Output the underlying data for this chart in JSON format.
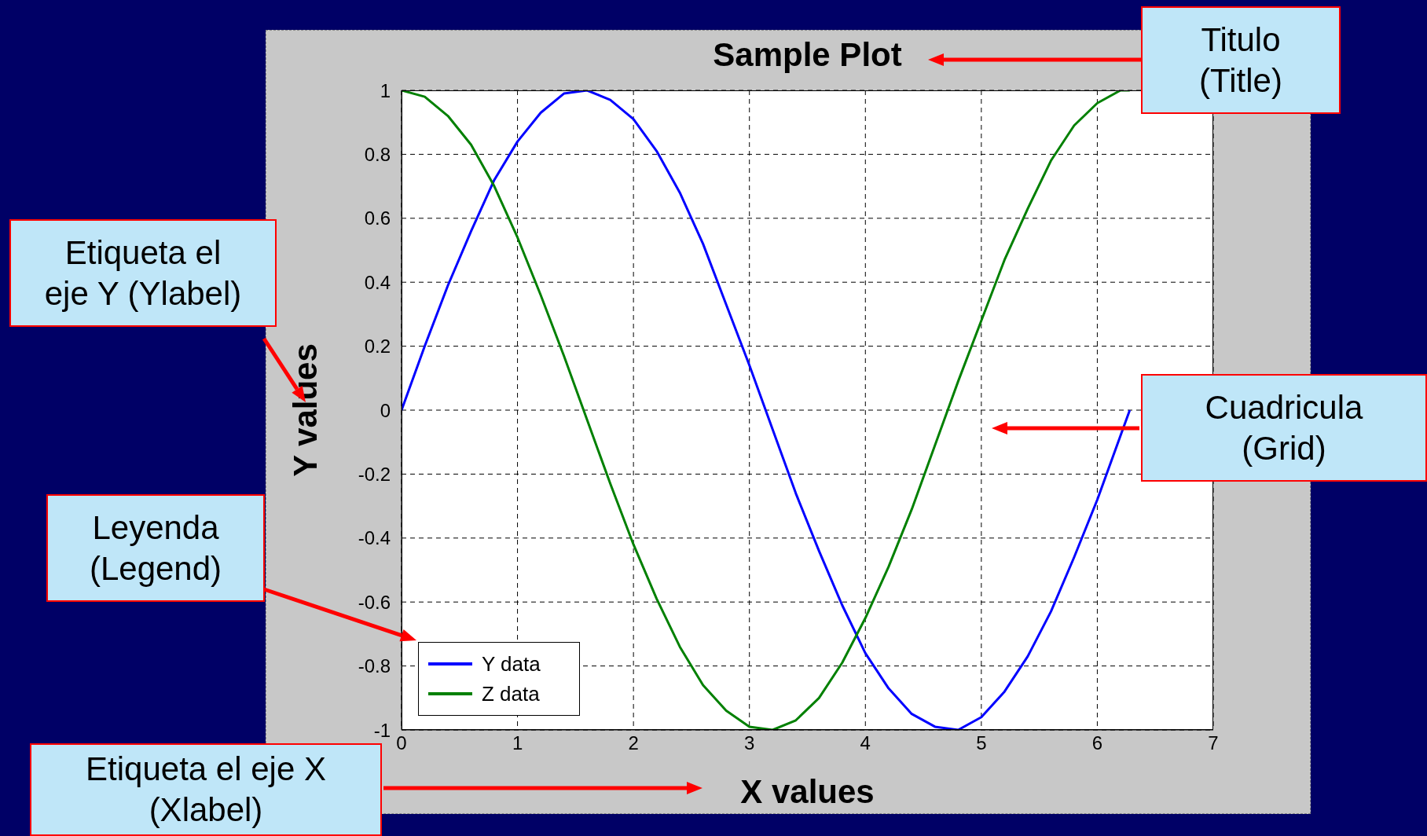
{
  "chart_data": {
    "type": "line",
    "title": "Sample Plot",
    "xlabel": "X values",
    "ylabel": "Y values",
    "x": [
      0,
      0.2,
      0.4,
      0.6,
      0.8,
      1,
      1.2,
      1.4,
      1.6,
      1.8,
      2,
      2.2,
      2.4,
      2.6,
      2.8,
      3,
      3.2,
      3.4,
      3.6,
      3.8,
      4,
      4.2,
      4.4,
      4.6,
      4.8,
      5,
      5.2,
      5.4,
      5.6,
      5.8,
      6,
      6.2,
      6.28
    ],
    "series": [
      {
        "name": "Y data",
        "color": "#0000ff",
        "values": [
          0,
          0.2,
          0.39,
          0.56,
          0.72,
          0.84,
          0.93,
          0.99,
          1,
          0.97,
          0.91,
          0.81,
          0.68,
          0.52,
          0.33,
          0.14,
          -0.06,
          -0.26,
          -0.44,
          -0.61,
          -0.76,
          -0.87,
          -0.95,
          -0.99,
          -1,
          -0.96,
          -0.88,
          -0.77,
          -0.63,
          -0.46,
          -0.28,
          -0.08,
          0
        ]
      },
      {
        "name": "Z data",
        "color": "#008000",
        "values": [
          1,
          0.98,
          0.92,
          0.83,
          0.7,
          0.54,
          0.36,
          0.17,
          -0.03,
          -0.23,
          -0.42,
          -0.59,
          -0.74,
          -0.86,
          -0.94,
          -0.99,
          -1,
          -0.97,
          -0.9,
          -0.79,
          -0.65,
          -0.49,
          -0.31,
          -0.11,
          0.09,
          0.28,
          0.47,
          0.63,
          0.78,
          0.89,
          0.96,
          1,
          1
        ]
      }
    ],
    "xlim": [
      0,
      7
    ],
    "xticks": [
      0,
      1,
      2,
      3,
      4,
      5,
      6,
      7
    ],
    "ylim": [
      -1,
      1
    ],
    "yticks": [
      -1,
      -0.8,
      -0.6,
      -0.4,
      -0.2,
      0,
      0.2,
      0.4,
      0.6,
      0.8,
      1
    ],
    "grid": true,
    "legend": "bottom left",
    "line_style": "solid",
    "marker": "none",
    "annotations": [
      "Titulo\n(Title)",
      "Etiqueta el\neje Y (Ylabel)",
      "Cuadricula\n(Grid)",
      "Leyenda\n(Legend)",
      "Etiqueta el eje X\n(Xlabel)"
    ]
  }
}
